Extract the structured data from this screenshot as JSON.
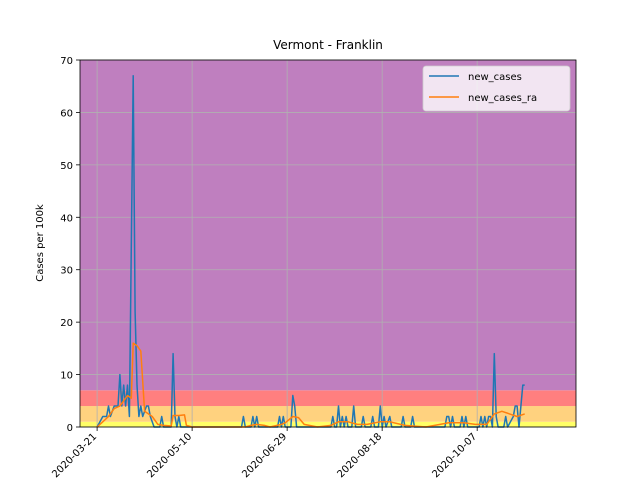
{
  "chart_data": {
    "type": "line",
    "title": "Vermont - Franklin",
    "xlabel": "",
    "ylabel": "Cases per 100k",
    "ylim": [
      0,
      70
    ],
    "yticks": [
      0,
      10,
      20,
      30,
      40,
      50,
      60,
      70
    ],
    "x_start": "2020-03-12",
    "x_end": "2020-11-28",
    "xticks": [
      "2020-03-21",
      "2020-05-10",
      "2020-06-29",
      "2020-08-18",
      "2020-10-07"
    ],
    "grid": true,
    "legend_position": "top-right",
    "risk_bands": [
      {
        "from": 0,
        "to": 1,
        "color": "#ffff66"
      },
      {
        "from": 1,
        "to": 4,
        "color": "#ffd27f"
      },
      {
        "from": 4,
        "to": 7,
        "color": "#ff7f7f"
      },
      {
        "from": 7,
        "to": 70,
        "color": "#bf7fbf"
      }
    ],
    "series": [
      {
        "name": "new_cases",
        "color": "#1f77b4",
        "points": [
          [
            "2020-03-21",
            0
          ],
          [
            "2020-03-24",
            2
          ],
          [
            "2020-03-26",
            2
          ],
          [
            "2020-03-27",
            4
          ],
          [
            "2020-03-28",
            2
          ],
          [
            "2020-03-30",
            4
          ],
          [
            "2020-04-01",
            4
          ],
          [
            "2020-04-02",
            10
          ],
          [
            "2020-04-03",
            4
          ],
          [
            "2020-04-04",
            8
          ],
          [
            "2020-04-05",
            4
          ],
          [
            "2020-04-06",
            8
          ],
          [
            "2020-04-07",
            2
          ],
          [
            "2020-04-09",
            67
          ],
          [
            "2020-04-10",
            22
          ],
          [
            "2020-04-11",
            8
          ],
          [
            "2020-04-12",
            2
          ],
          [
            "2020-04-13",
            4
          ],
          [
            "2020-04-14",
            2
          ],
          [
            "2020-04-16",
            4
          ],
          [
            "2020-04-17",
            4
          ],
          [
            "2020-04-18",
            2
          ],
          [
            "2020-04-20",
            0
          ],
          [
            "2020-04-23",
            0
          ],
          [
            "2020-04-24",
            2
          ],
          [
            "2020-04-25",
            0
          ],
          [
            "2020-04-29",
            0
          ],
          [
            "2020-04-30",
            14
          ],
          [
            "2020-05-01",
            2
          ],
          [
            "2020-05-02",
            0
          ],
          [
            "2020-05-03",
            2
          ],
          [
            "2020-05-04",
            0
          ],
          [
            "2020-05-10",
            0
          ],
          [
            "2020-06-05",
            0
          ],
          [
            "2020-06-06",
            2
          ],
          [
            "2020-06-07",
            0
          ],
          [
            "2020-06-10",
            0
          ],
          [
            "2020-06-11",
            2
          ],
          [
            "2020-06-12",
            0
          ],
          [
            "2020-06-13",
            2
          ],
          [
            "2020-06-14",
            0
          ],
          [
            "2020-06-24",
            0
          ],
          [
            "2020-06-25",
            2
          ],
          [
            "2020-06-26",
            0
          ],
          [
            "2020-06-27",
            2
          ],
          [
            "2020-06-28",
            0
          ],
          [
            "2020-07-01",
            0
          ],
          [
            "2020-07-02",
            6
          ],
          [
            "2020-07-03",
            4
          ],
          [
            "2020-07-04",
            0
          ],
          [
            "2020-07-22",
            0
          ],
          [
            "2020-07-23",
            2
          ],
          [
            "2020-07-24",
            0
          ],
          [
            "2020-07-25",
            0
          ],
          [
            "2020-07-26",
            4
          ],
          [
            "2020-07-27",
            0
          ],
          [
            "2020-07-28",
            2
          ],
          [
            "2020-07-29",
            0
          ],
          [
            "2020-07-30",
            2
          ],
          [
            "2020-07-31",
            0
          ],
          [
            "2020-08-02",
            0
          ],
          [
            "2020-08-03",
            4
          ],
          [
            "2020-08-04",
            0
          ],
          [
            "2020-08-07",
            0
          ],
          [
            "2020-08-08",
            2
          ],
          [
            "2020-08-09",
            0
          ],
          [
            "2020-08-12",
            0
          ],
          [
            "2020-08-13",
            2
          ],
          [
            "2020-08-14",
            0
          ],
          [
            "2020-08-16",
            0
          ],
          [
            "2020-08-17",
            4
          ],
          [
            "2020-08-18",
            0
          ],
          [
            "2020-08-19",
            2
          ],
          [
            "2020-08-20",
            0
          ],
          [
            "2020-08-22",
            2
          ],
          [
            "2020-08-23",
            0
          ],
          [
            "2020-08-28",
            0
          ],
          [
            "2020-08-29",
            2
          ],
          [
            "2020-08-30",
            0
          ],
          [
            "2020-09-02",
            0
          ],
          [
            "2020-09-03",
            2
          ],
          [
            "2020-09-04",
            0
          ],
          [
            "2020-09-20",
            0
          ],
          [
            "2020-09-21",
            2
          ],
          [
            "2020-09-22",
            2
          ],
          [
            "2020-09-23",
            0
          ],
          [
            "2020-09-24",
            2
          ],
          [
            "2020-09-25",
            0
          ],
          [
            "2020-09-28",
            0
          ],
          [
            "2020-09-29",
            2
          ],
          [
            "2020-09-30",
            0
          ],
          [
            "2020-10-01",
            2
          ],
          [
            "2020-10-02",
            0
          ],
          [
            "2020-10-08",
            0
          ],
          [
            "2020-10-09",
            2
          ],
          [
            "2020-10-10",
            0
          ],
          [
            "2020-10-11",
            2
          ],
          [
            "2020-10-12",
            0
          ],
          [
            "2020-10-13",
            2
          ],
          [
            "2020-10-14",
            2
          ],
          [
            "2020-10-15",
            0
          ],
          [
            "2020-10-16",
            14
          ],
          [
            "2020-10-17",
            2
          ],
          [
            "2020-10-18",
            0
          ],
          [
            "2020-10-21",
            0
          ],
          [
            "2020-10-22",
            2
          ],
          [
            "2020-10-23",
            0
          ],
          [
            "2020-10-26",
            2
          ],
          [
            "2020-10-27",
            4
          ],
          [
            "2020-10-28",
            4
          ],
          [
            "2020-10-29",
            0
          ],
          [
            "2020-10-31",
            8
          ],
          [
            "2020-11-01",
            8
          ]
        ]
      },
      {
        "name": "new_cases_ra",
        "color": "#ff7f0e",
        "points": [
          [
            "2020-03-21",
            0
          ],
          [
            "2020-03-24",
            1
          ],
          [
            "2020-03-27",
            2
          ],
          [
            "2020-03-30",
            3.5
          ],
          [
            "2020-04-02",
            4
          ],
          [
            "2020-04-04",
            5
          ],
          [
            "2020-04-06",
            6
          ],
          [
            "2020-04-08",
            5.5
          ],
          [
            "2020-04-09",
            16
          ],
          [
            "2020-04-11",
            15.5
          ],
          [
            "2020-04-13",
            14.5
          ],
          [
            "2020-04-15",
            3
          ],
          [
            "2020-04-17",
            2.5
          ],
          [
            "2020-04-19",
            2
          ],
          [
            "2020-04-22",
            0.5
          ],
          [
            "2020-04-25",
            0.3
          ],
          [
            "2020-04-29",
            0.2
          ],
          [
            "2020-04-30",
            2.2
          ],
          [
            "2020-05-03",
            2.2
          ],
          [
            "2020-05-06",
            2.3
          ],
          [
            "2020-05-07",
            0.3
          ],
          [
            "2020-05-10",
            0
          ],
          [
            "2020-06-07",
            0
          ],
          [
            "2020-06-10",
            0.3
          ],
          [
            "2020-06-13",
            0.5
          ],
          [
            "2020-06-17",
            0.3
          ],
          [
            "2020-06-20",
            0
          ],
          [
            "2020-06-26",
            0.5
          ],
          [
            "2020-06-28",
            0.8
          ],
          [
            "2020-07-02",
            2
          ],
          [
            "2020-07-05",
            1.8
          ],
          [
            "2020-07-08",
            0.5
          ],
          [
            "2020-07-15",
            0
          ],
          [
            "2020-07-22",
            0.3
          ],
          [
            "2020-07-26",
            1
          ],
          [
            "2020-07-31",
            1
          ],
          [
            "2020-08-05",
            0.5
          ],
          [
            "2020-08-10",
            0.5
          ],
          [
            "2020-08-17",
            1
          ],
          [
            "2020-08-22",
            1
          ],
          [
            "2020-08-30",
            0.3
          ],
          [
            "2020-09-10",
            0
          ],
          [
            "2020-09-22",
            0.8
          ],
          [
            "2020-09-30",
            0.8
          ],
          [
            "2020-10-06",
            0.5
          ],
          [
            "2020-10-12",
            0.5
          ],
          [
            "2020-10-16",
            2.5
          ],
          [
            "2020-10-20",
            3
          ],
          [
            "2020-10-24",
            2.5
          ],
          [
            "2020-10-28",
            2
          ],
          [
            "2020-11-01",
            2.5
          ]
        ]
      }
    ]
  }
}
